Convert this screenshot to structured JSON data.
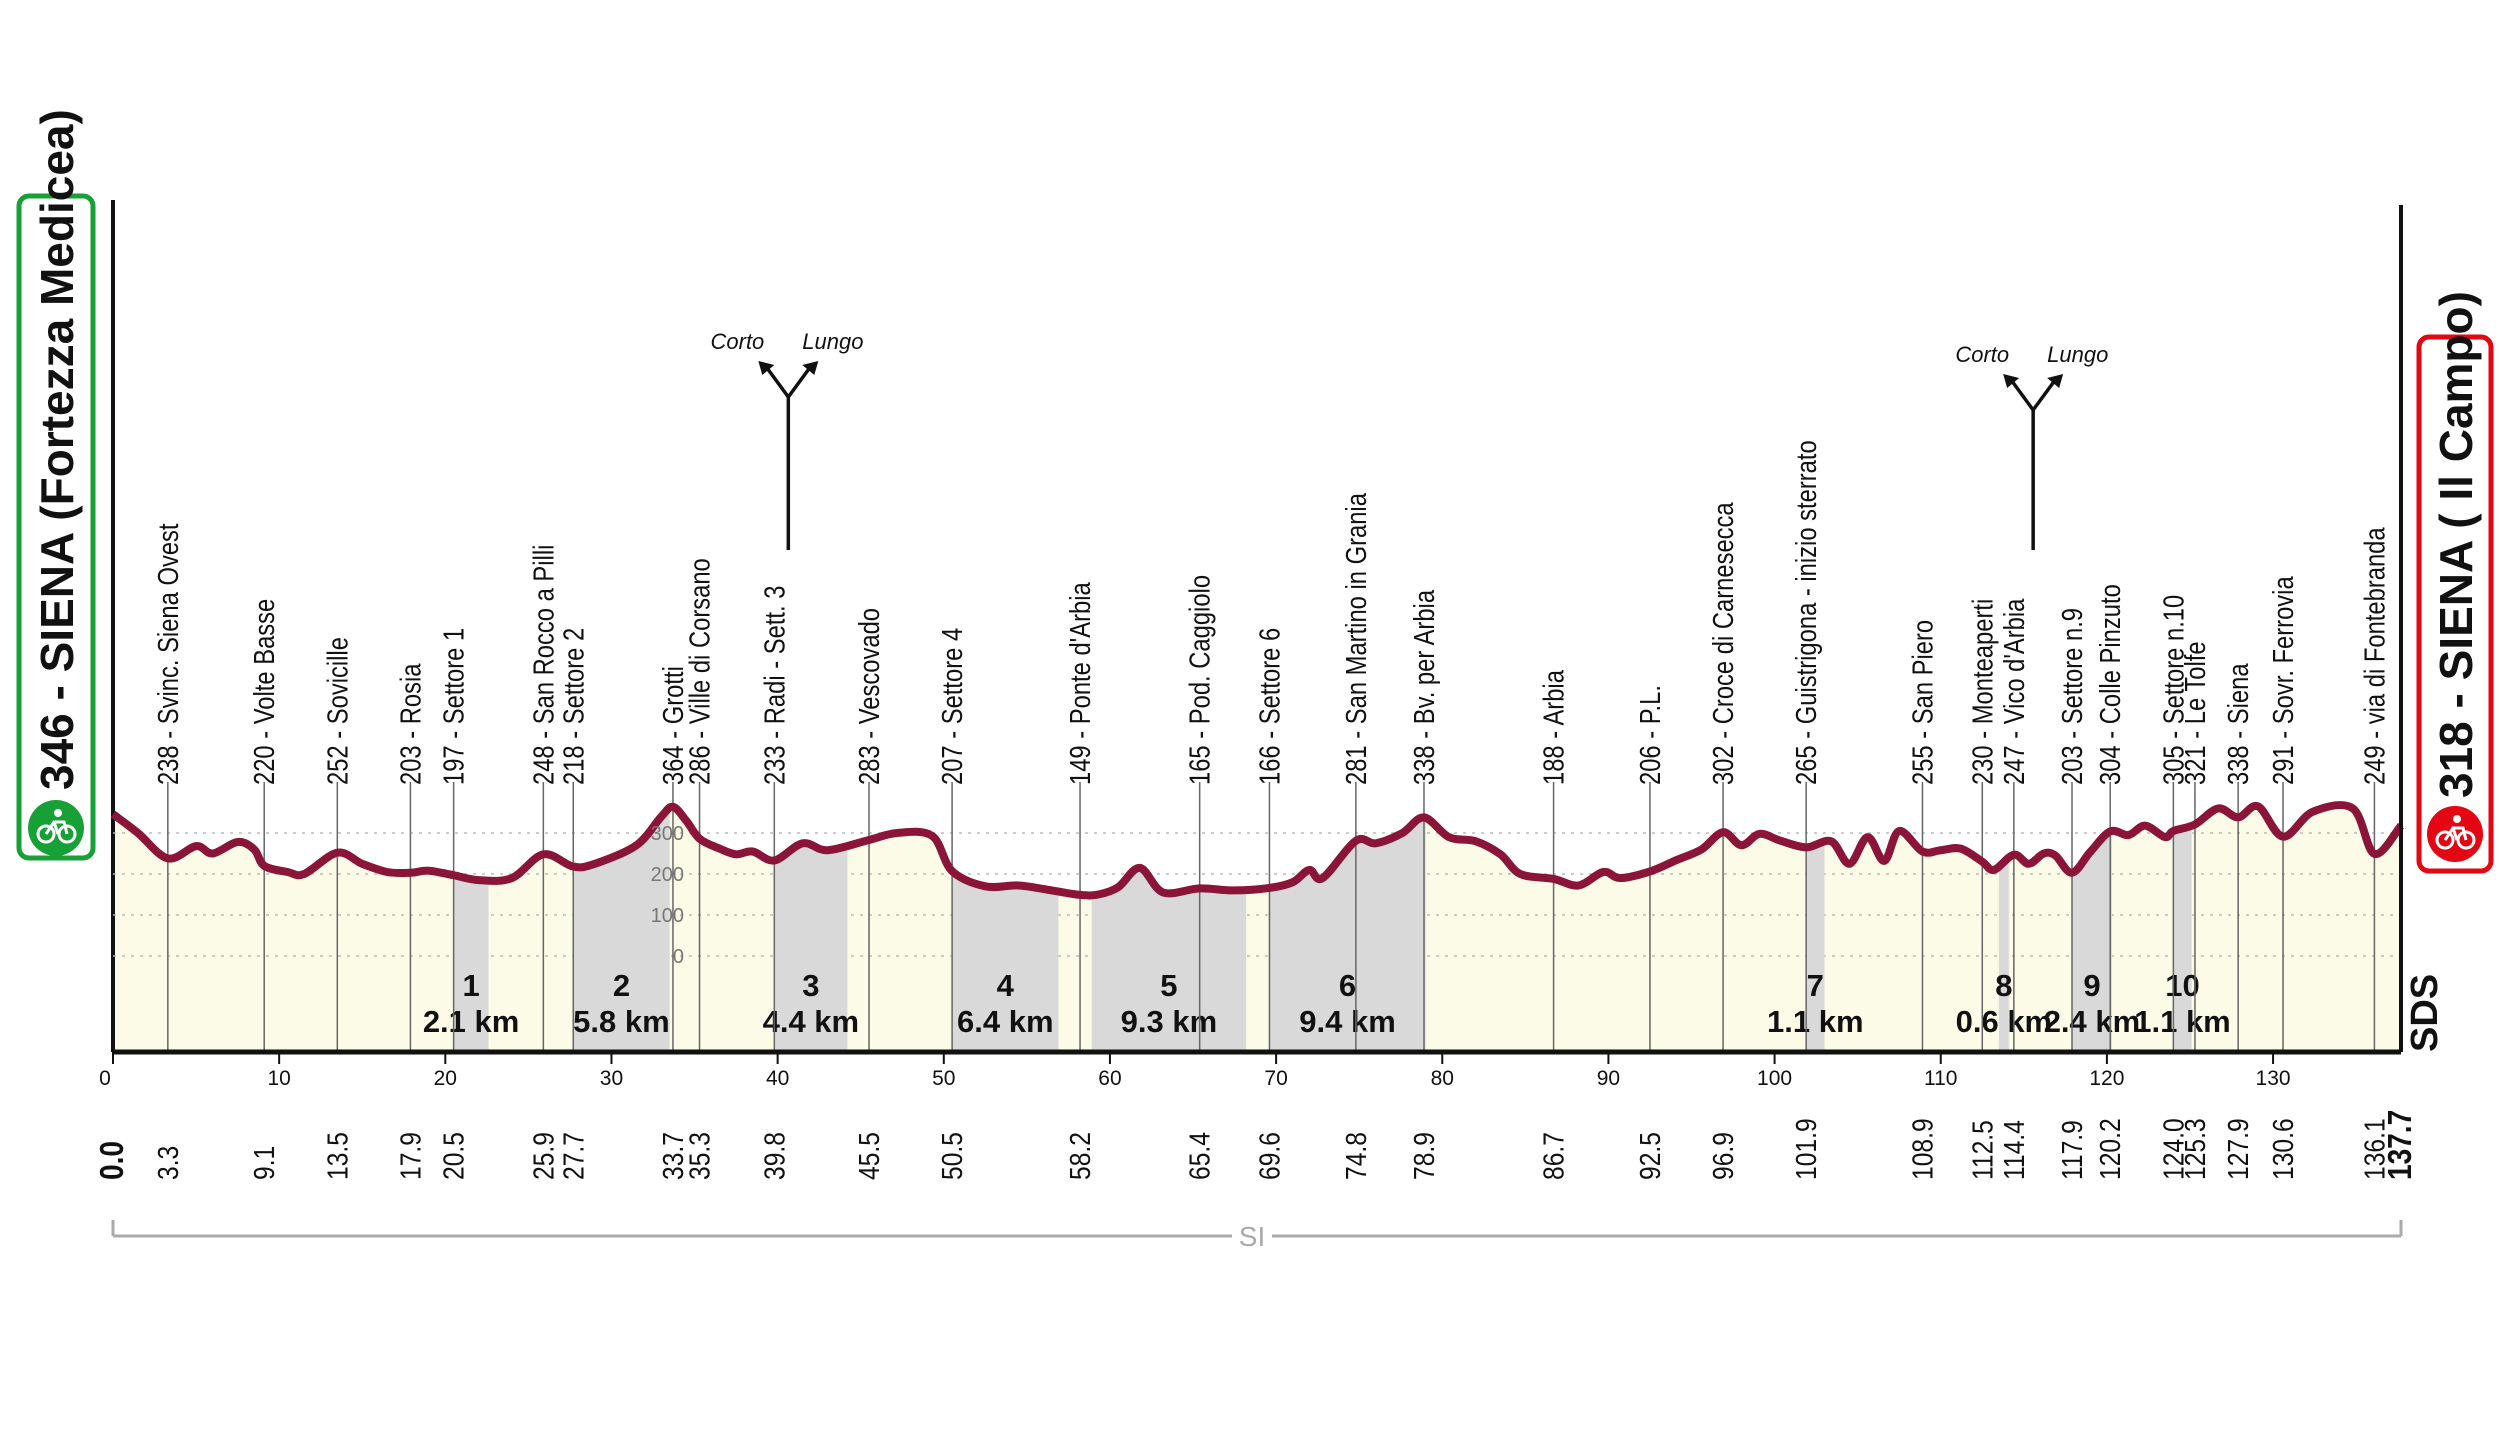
{
  "start": {
    "text": "346 - SIENA (Fortezza Medicea)",
    "icon": "cyclist-start-icon",
    "color": "#17a035"
  },
  "finish": {
    "text": "318 - SIENA ( Il Campo)",
    "icon": "cyclist-finish-icon",
    "color": "#e30613"
  },
  "logo": "SDS",
  "bottom_label": "SI",
  "corto": "Corto",
  "lungo": "Lungo",
  "elev_ticks": [
    "300",
    "200",
    "100",
    "0"
  ],
  "colors": {
    "profile": "#8a1538",
    "fill": "#fbfbe8",
    "sector": "#d9d9d9",
    "grid": "#bbbbbb"
  },
  "chart_data": {
    "type": "area",
    "xlim": [
      0,
      137.7
    ],
    "x_ticks": [
      0,
      10,
      20,
      30,
      40,
      50,
      60,
      70,
      80,
      90,
      100,
      110,
      120,
      130
    ],
    "profile": [
      [
        0,
        346
      ],
      [
        1.5,
        300
      ],
      [
        3.3,
        238
      ],
      [
        5,
        268
      ],
      [
        6,
        250
      ],
      [
        7.5,
        278
      ],
      [
        8.5,
        260
      ],
      [
        9.1,
        220
      ],
      [
        10.5,
        205
      ],
      [
        11.5,
        200
      ],
      [
        13.5,
        252
      ],
      [
        15,
        225
      ],
      [
        16.5,
        205
      ],
      [
        17.9,
        203
      ],
      [
        19,
        208
      ],
      [
        20.5,
        197
      ],
      [
        22,
        185
      ],
      [
        24,
        190
      ],
      [
        25.9,
        248
      ],
      [
        27.7,
        218
      ],
      [
        29,
        225
      ],
      [
        31.5,
        270
      ],
      [
        33,
        340
      ],
      [
        33.7,
        364
      ],
      [
        34.5,
        330
      ],
      [
        35.3,
        286
      ],
      [
        36.5,
        262
      ],
      [
        37.5,
        248
      ],
      [
        38.5,
        255
      ],
      [
        39.8,
        233
      ],
      [
        41.5,
        275
      ],
      [
        43,
        258
      ],
      [
        45.5,
        283
      ],
      [
        47.2,
        300
      ],
      [
        49.3,
        293
      ],
      [
        50.5,
        207
      ],
      [
        52.5,
        170
      ],
      [
        54.5,
        172
      ],
      [
        56.5,
        160
      ],
      [
        58.2,
        149
      ],
      [
        59.3,
        150
      ],
      [
        60.5,
        168
      ],
      [
        61.8,
        215
      ],
      [
        63.2,
        155
      ],
      [
        65.4,
        165
      ],
      [
        67.4,
        160
      ],
      [
        69.6,
        166
      ],
      [
        71,
        180
      ],
      [
        72,
        210
      ],
      [
        72.8,
        190
      ],
      [
        74.8,
        281
      ],
      [
        76,
        275
      ],
      [
        77.6,
        300
      ],
      [
        78.9,
        338
      ],
      [
        80.4,
        290
      ],
      [
        82,
        280
      ],
      [
        83.5,
        248
      ],
      [
        84.7,
        200
      ],
      [
        86.7,
        188
      ],
      [
        88.2,
        172
      ],
      [
        89.7,
        205
      ],
      [
        90.7,
        190
      ],
      [
        92.5,
        206
      ],
      [
        94.1,
        234
      ],
      [
        95.6,
        260
      ],
      [
        96.9,
        302
      ],
      [
        98,
        270
      ],
      [
        99.1,
        298
      ],
      [
        100.3,
        282
      ],
      [
        101.9,
        265
      ],
      [
        103.4,
        280
      ],
      [
        104.5,
        225
      ],
      [
        105.6,
        290
      ],
      [
        106.6,
        232
      ],
      [
        107.5,
        305
      ],
      [
        108.9,
        255
      ],
      [
        110,
        258
      ],
      [
        111.2,
        262
      ],
      [
        112.5,
        230
      ],
      [
        113.2,
        210
      ],
      [
        114.4,
        247
      ],
      [
        115.3,
        225
      ],
      [
        116.2,
        250
      ],
      [
        116.9,
        245
      ],
      [
        117.9,
        203
      ],
      [
        119,
        254
      ],
      [
        120.2,
        304
      ],
      [
        121.3,
        295
      ],
      [
        122.3,
        318
      ],
      [
        123.5,
        290
      ],
      [
        124,
        305
      ],
      [
        125.3,
        321
      ],
      [
        126.7,
        360
      ],
      [
        127.9,
        338
      ],
      [
        129.1,
        365
      ],
      [
        130.6,
        291
      ],
      [
        132.4,
        352
      ],
      [
        134.8,
        360
      ],
      [
        136.1,
        249
      ],
      [
        137.7,
        318
      ]
    ],
    "waypoints": [
      {
        "km": "0.0",
        "x": 0,
        "elev": 346,
        "label": ""
      },
      {
        "km": "3.3",
        "x": 3.3,
        "elev": 238,
        "label": "238 - Svinc. Siena Ovest"
      },
      {
        "km": "9.1",
        "x": 9.1,
        "elev": 220,
        "label": "220 - Volte Basse"
      },
      {
        "km": "13.5",
        "x": 13.5,
        "elev": 252,
        "label": "252 - Sovicille"
      },
      {
        "km": "17.9",
        "x": 17.9,
        "elev": 203,
        "label": "203 - Rosia"
      },
      {
        "km": "20.5",
        "x": 20.5,
        "elev": 197,
        "label": "197 - Settore 1"
      },
      {
        "km": "25.9",
        "x": 25.9,
        "elev": 248,
        "label": "248 - San Rocco a Pilli"
      },
      {
        "km": "27.7",
        "x": 27.7,
        "elev": 218,
        "label": "218 - Settore 2"
      },
      {
        "km": "33.7",
        "x": 33.7,
        "elev": 364,
        "label": "364 - Grotti"
      },
      {
        "km": "35.3",
        "x": 35.3,
        "elev": 286,
        "label": "286 - Ville di Corsano"
      },
      {
        "km": "39.8",
        "x": 39.8,
        "elev": 233,
        "label": "233 - Radi - Sett. 3"
      },
      {
        "km": "45.5",
        "x": 45.5,
        "elev": 283,
        "label": "283 - Vescovado"
      },
      {
        "km": "50.5",
        "x": 50.5,
        "elev": 207,
        "label": "207 - Settore 4"
      },
      {
        "km": "58.2",
        "x": 58.2,
        "elev": 149,
        "label": "149 - Ponte d'Arbia"
      },
      {
        "km": "65.4",
        "x": 65.4,
        "elev": 165,
        "label": "165 - Pod. Caggiolo"
      },
      {
        "km": "69.6",
        "x": 69.6,
        "elev": 166,
        "label": "166 - Settore 6"
      },
      {
        "km": "74.8",
        "x": 74.8,
        "elev": 281,
        "label": "281 - San Martino in Grania"
      },
      {
        "km": "78.9",
        "x": 78.9,
        "elev": 338,
        "label": "338 - Bv. per Arbia"
      },
      {
        "km": "86.7",
        "x": 86.7,
        "elev": 188,
        "label": "188 - Arbia"
      },
      {
        "km": "92.5",
        "x": 92.5,
        "elev": 206,
        "label": "206 - P.L."
      },
      {
        "km": "96.9",
        "x": 96.9,
        "elev": 302,
        "label": "302 - Croce di Carnesecca"
      },
      {
        "km": "101.9",
        "x": 101.9,
        "elev": 265,
        "label": "265 - Guistrigona - inizio sterrato"
      },
      {
        "km": "108.9",
        "x": 108.9,
        "elev": 255,
        "label": "255 - San Piero"
      },
      {
        "km": "112.5",
        "x": 112.5,
        "elev": 230,
        "label": "230 - Monteaperti"
      },
      {
        "km": "114.4",
        "x": 114.4,
        "elev": 247,
        "label": "247 - Vico d'Arbia"
      },
      {
        "km": "117.9",
        "x": 117.9,
        "elev": 203,
        "label": "203 - Settore n.9"
      },
      {
        "km": "120.2",
        "x": 120.2,
        "elev": 304,
        "label": "304 - Colle Pinzuto"
      },
      {
        "km": "124.0",
        "x": 124.0,
        "elev": 305,
        "label": "305 - Settore n.10"
      },
      {
        "km": "125.3",
        "x": 125.3,
        "elev": 321,
        "label": "321 - Le Tolfe"
      },
      {
        "km": "127.9",
        "x": 127.9,
        "elev": 338,
        "label": "338 - Siena"
      },
      {
        "km": "130.6",
        "x": 130.6,
        "elev": 291,
        "label": "291 - Sovr. Ferrovia"
      },
      {
        "km": "136.1",
        "x": 136.1,
        "elev": 249,
        "label": "249 - via di Fontebranda"
      },
      {
        "km": "137.7",
        "x": 137.7,
        "elev": 318,
        "label": ""
      }
    ],
    "sectors": [
      {
        "num": "1",
        "length": "2.1 km",
        "start": 20.5,
        "end": 22.6
      },
      {
        "num": "2",
        "length": "5.8 km",
        "start": 27.7,
        "end": 33.5
      },
      {
        "num": "3",
        "length": "4.4 km",
        "start": 39.8,
        "end": 44.2
      },
      {
        "num": "4",
        "length": "6.4 km",
        "start": 50.5,
        "end": 56.9
      },
      {
        "num": "5",
        "length": "9.3 km",
        "start": 58.9,
        "end": 68.2
      },
      {
        "num": "6",
        "length": "9.4 km",
        "start": 69.6,
        "end": 79.0
      },
      {
        "num": "7",
        "length": "1.1 km",
        "start": 101.9,
        "end": 103.0
      },
      {
        "num": "8",
        "length": "0.6 km",
        "start": 113.5,
        "end": 114.1
      },
      {
        "num": "9",
        "length": "2.4 km",
        "start": 117.9,
        "end": 120.3
      },
      {
        "num": "10",
        "length": "1.1 km",
        "start": 124.0,
        "end": 125.1
      }
    ],
    "forks": [
      39.8,
      114.9
    ],
    "elevation_ticks": [
      300,
      200,
      100,
      0
    ],
    "ylim": [
      -250,
      600
    ]
  }
}
